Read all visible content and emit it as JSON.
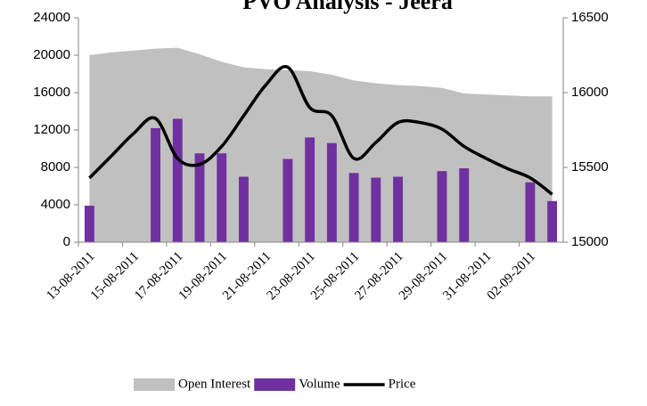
{
  "chart_data": {
    "type": "combo",
    "title": "PVO Analysis - Jeera",
    "categories": [
      "13-08-2011",
      null,
      "15-08-2011",
      null,
      "17-08-2011",
      null,
      "19-08-2011",
      null,
      "21-08-2011",
      null,
      "23-08-2011",
      null,
      "25-08-2011",
      null,
      "27-08-2011",
      null,
      "29-08-2011",
      null,
      "31-08-2011",
      null,
      "02-09-2011",
      null
    ],
    "series": [
      {
        "name": "Open Interest",
        "type": "area",
        "color": "#c0c0c0",
        "values": [
          20000,
          20300,
          20500,
          20700,
          20800,
          20100,
          19300,
          18700,
          18500,
          18400,
          18300,
          17900,
          17300,
          17000,
          16800,
          16700,
          16500,
          15900,
          15800,
          15700,
          15600,
          15600
        ]
      },
      {
        "name": "Volume",
        "type": "bar",
        "color": "#7030a0",
        "values": [
          3900,
          null,
          null,
          12200,
          13200,
          9500,
          9500,
          7000,
          null,
          8900,
          11200,
          10600,
          7400,
          6900,
          7000,
          null,
          7600,
          7900,
          null,
          null,
          6400,
          4400
        ]
      },
      {
        "name": "Price",
        "type": "line",
        "color": "#000000",
        "axis": "y2",
        "values": [
          15429,
          15577,
          15726,
          15827,
          15560,
          15520,
          15640,
          15845,
          16050,
          16170,
          15900,
          15845,
          15560,
          15667,
          15800,
          15800,
          15756,
          15640,
          15560,
          15490,
          15430,
          15320
        ]
      }
    ],
    "ylim": [
      0,
      24000
    ],
    "yticks": [
      0,
      4000,
      8000,
      12000,
      16000,
      20000,
      24000
    ],
    "y2lim": [
      15000,
      16500
    ],
    "y2ticks": [
      15000,
      15500,
      16000,
      16500
    ],
    "legend": "bottom"
  }
}
